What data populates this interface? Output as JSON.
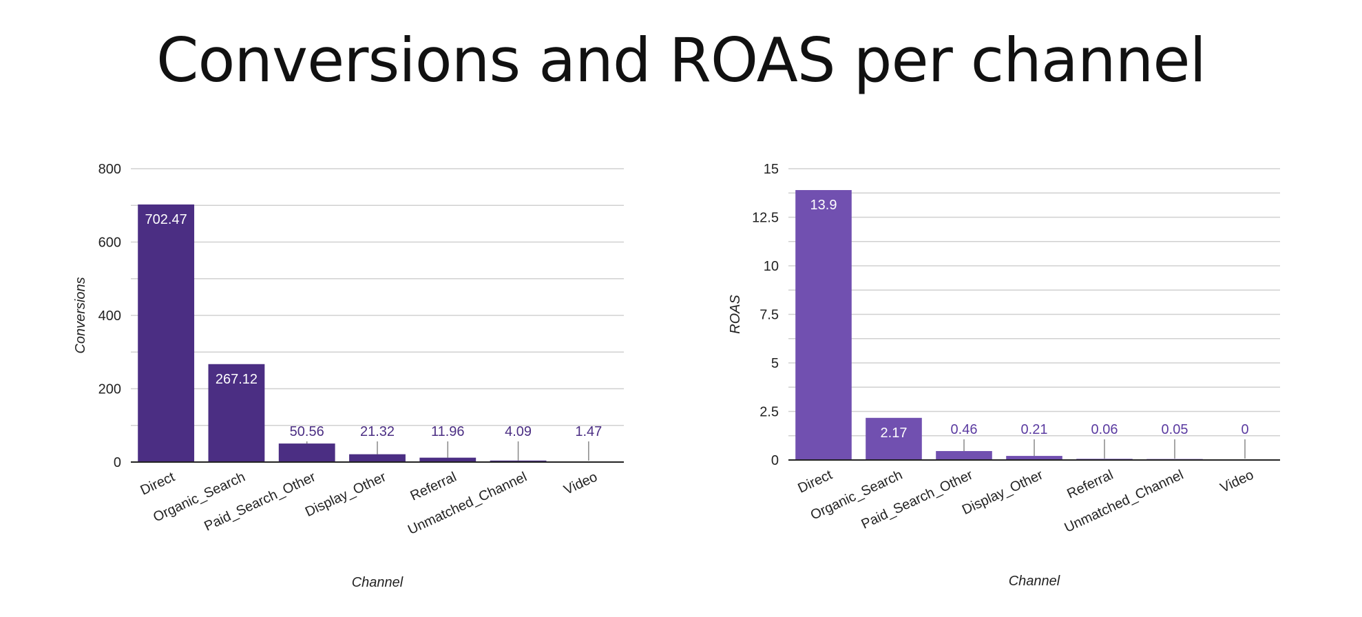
{
  "title": "Conversions and ROAS per channel",
  "chart_data": [
    {
      "type": "bar",
      "title": "",
      "xlabel": "Channel",
      "ylabel": "Conversions",
      "ylim": [
        0,
        800
      ],
      "yticks": [
        0,
        200,
        400,
        600,
        800
      ],
      "grid": true,
      "bar_color": "#4b2e83",
      "label_color": "#4b2e83",
      "categories": [
        "Direct",
        "Organic_Search",
        "Paid_Search_Other",
        "Display_Other",
        "Referral",
        "Unmatched_Channel",
        "Video"
      ],
      "values": [
        702.47,
        267.12,
        50.56,
        21.32,
        11.96,
        4.09,
        1.47
      ],
      "data_labels": [
        "702.47",
        "267.12",
        "50.56",
        "21.32",
        "11.96",
        "4.09",
        "1.47"
      ]
    },
    {
      "type": "bar",
      "title": "",
      "xlabel": "Channel",
      "ylabel": "ROAS",
      "ylim": [
        0,
        15
      ],
      "yticks": [
        0,
        2.5,
        5,
        7.5,
        10,
        12.5,
        15
      ],
      "grid": true,
      "bar_color": "#7150b0",
      "label_color": "#5a3aa0",
      "categories": [
        "Direct",
        "Organic_Search",
        "Paid_Search_Other",
        "Display_Other",
        "Referral",
        "Unmatched_Channel",
        "Video"
      ],
      "values": [
        13.9,
        2.17,
        0.46,
        0.21,
        0.06,
        0.05,
        0
      ],
      "data_labels": [
        "13.9",
        "2.17",
        "0.46",
        "0.21",
        "0.06",
        "0.05",
        "0"
      ]
    }
  ]
}
